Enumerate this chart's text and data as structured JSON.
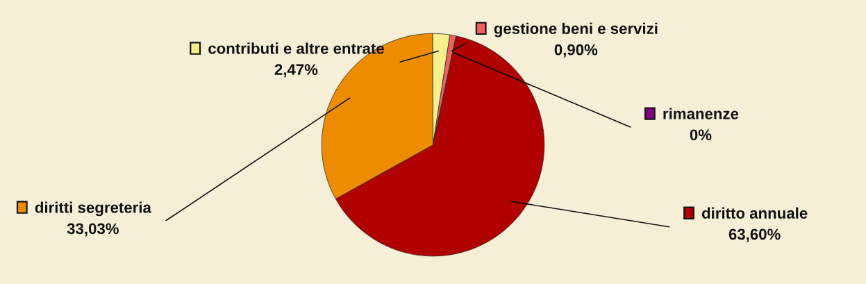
{
  "chart_data": {
    "type": "pie",
    "categories": [
      "diritto annuale",
      "diritti segreteria",
      "contributi e altre entrate",
      "gestione beni e servizi",
      "rimanenze"
    ],
    "values": [
      63.6,
      33.03,
      2.47,
      0.9,
      0
    ],
    "value_labels": [
      "63,60%",
      "33,03%",
      "2,47%",
      "0,90%",
      "0%"
    ],
    "colors": [
      "#b00000",
      "#ee8c00",
      "#f5f08c",
      "#f06060",
      "#800080"
    ],
    "legend": "top left"
  }
}
